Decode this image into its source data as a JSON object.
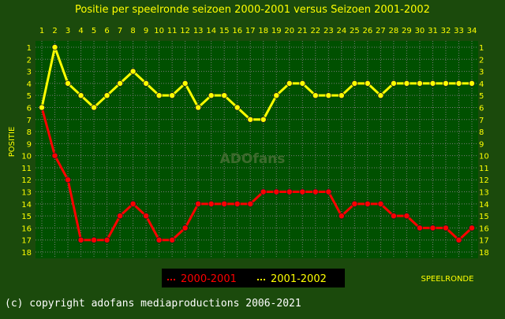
{
  "chart_data": {
    "type": "line",
    "title": "Positie per speelronde seizoen 2000-2001 versus Seizoen 2001-2002",
    "xlabel": "SPEELRONDE",
    "ylabel": "POSITIE",
    "x": [
      1,
      2,
      3,
      4,
      5,
      6,
      7,
      8,
      9,
      10,
      11,
      12,
      13,
      14,
      15,
      16,
      17,
      18,
      19,
      20,
      21,
      22,
      23,
      24,
      25,
      26,
      27,
      28,
      29,
      30,
      31,
      32,
      33,
      34
    ],
    "xlim": [
      1,
      34
    ],
    "ylim": [
      1,
      18
    ],
    "y_inverted": true,
    "grid": true,
    "legend_placement": "bottom-center",
    "series": [
      {
        "name": "2000-2001",
        "color": "#ff0000",
        "values": [
          6,
          10,
          12,
          17,
          17,
          17,
          15,
          14,
          15,
          17,
          17,
          16,
          14,
          14,
          14,
          14,
          14,
          13,
          13,
          13,
          13,
          13,
          13,
          15,
          14,
          14,
          14,
          15,
          15,
          16,
          16,
          16,
          17,
          16
        ]
      },
      {
        "name": "2001-2002",
        "color": "#ffff00",
        "values": [
          6,
          1,
          4,
          5,
          6,
          5,
          4,
          3,
          4,
          5,
          5,
          4,
          6,
          5,
          5,
          6,
          7,
          7,
          5,
          4,
          4,
          5,
          5,
          5,
          4,
          4,
          5,
          4,
          4,
          4,
          4,
          4,
          4,
          4
        ]
      }
    ],
    "watermark": "ADOfans",
    "copyright": "(c) copyright adofans mediaproductions 2006-2021"
  },
  "colors": {
    "background": "#1b4a0c",
    "plot_background": "#005000",
    "grid": "#7a7a7a",
    "text": "#ffff00",
    "footer_text": "#ffffff",
    "legend_background": "#000000"
  }
}
